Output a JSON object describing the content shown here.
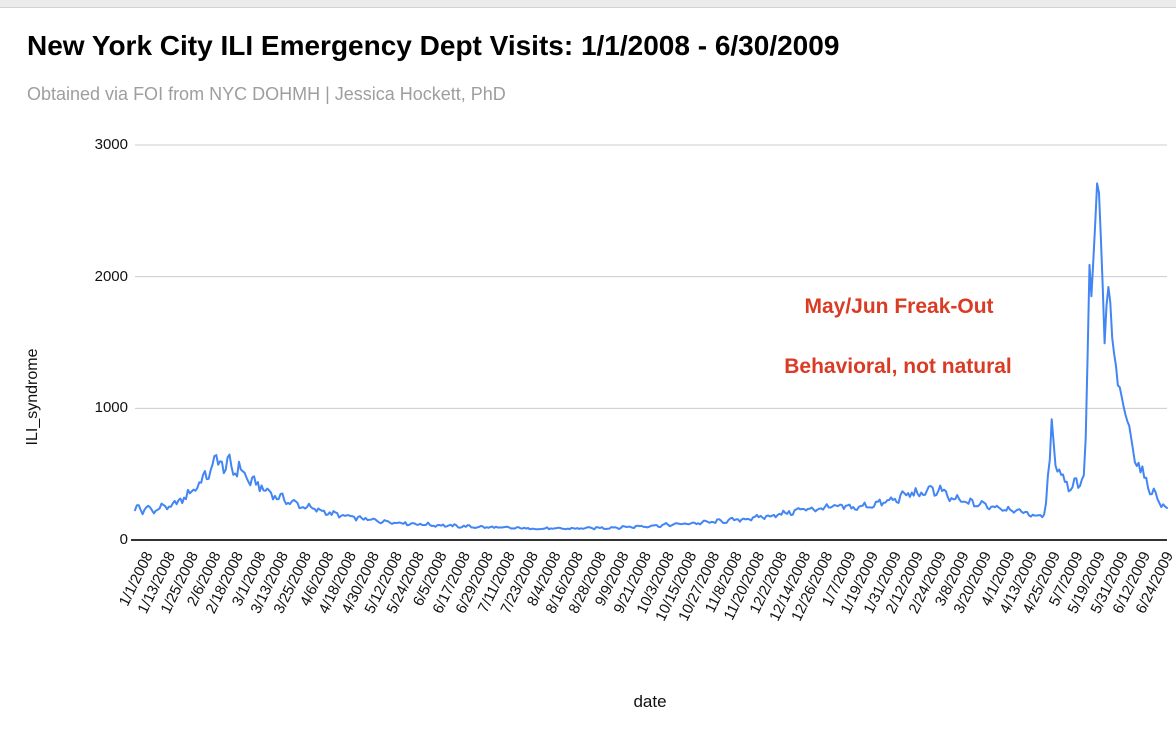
{
  "header": {
    "title": "New York City ILI Emergency Dept Visits: 1/1/2008 - 6/30/2009",
    "subtitle": "Obtained via FOI from NYC DOHMH | Jessica Hockett, PhD"
  },
  "colors": {
    "line": "#4285f4",
    "annotation_red": "#d93b25",
    "subtitle_gray": "#9e9e9e",
    "gridline": "#cccccc",
    "axis_line": "#333333"
  },
  "chart_data": {
    "type": "line",
    "title": "New York City ILI Emergency Dept Visits: 1/1/2008 - 6/30/2009",
    "xlabel": "date",
    "ylabel": "ILI_syndrome",
    "ylim": [
      0,
      3000
    ],
    "yticks": [
      0,
      1000,
      2000,
      3000
    ],
    "grid": "horizontal",
    "legend": "none",
    "x_range": [
      "1/1/2008",
      "6/30/2009"
    ],
    "x_tick_interval_days": 12,
    "x_tick_labels": [
      "1/1/2008",
      "1/13/2008",
      "1/25/2008",
      "2/6/2008",
      "2/18/2008",
      "3/1/2008",
      "3/13/2008",
      "3/25/2008",
      "4/6/2008",
      "4/18/2008",
      "4/30/2008",
      "5/12/2008",
      "5/24/2008",
      "6/5/2008",
      "6/17/2008",
      "6/29/2008",
      "7/11/2008",
      "7/23/2008",
      "8/4/2008",
      "8/16/2008",
      "8/28/2008",
      "9/9/2008",
      "9/21/2008",
      "10/3/2008",
      "10/15/2008",
      "10/27/2008",
      "11/8/2008",
      "11/20/2008",
      "12/2/2008",
      "12/14/2008",
      "12/26/2008",
      "1/7/2009",
      "1/19/2009",
      "1/31/2009",
      "2/12/2009",
      "2/24/2009",
      "3/8/2009",
      "3/20/2009",
      "4/1/2009",
      "4/13/2009",
      "4/25/2009",
      "5/7/2009",
      "5/19/2009",
      "5/31/2009",
      "6/12/2009",
      "6/24/2009"
    ],
    "series": [
      {
        "name": "ILI_syndrome",
        "color": "#4285f4",
        "sampling_note": "daily series; keypoints read from plot as [day_index_from_1/1/2008, visits], intermediate days interpolated with small day-to-day jitter",
        "keypoints_day_value": [
          [
            0,
            230
          ],
          [
            2,
            255
          ],
          [
            4,
            215
          ],
          [
            7,
            250
          ],
          [
            9,
            220
          ],
          [
            12,
            235
          ],
          [
            15,
            260
          ],
          [
            18,
            245
          ],
          [
            21,
            270
          ],
          [
            24,
            300
          ],
          [
            27,
            330
          ],
          [
            30,
            370
          ],
          [
            33,
            420
          ],
          [
            36,
            460
          ],
          [
            39,
            510
          ],
          [
            41,
            540
          ],
          [
            43,
            660
          ],
          [
            44,
            560
          ],
          [
            46,
            600
          ],
          [
            48,
            540
          ],
          [
            50,
            580
          ],
          [
            52,
            520
          ],
          [
            55,
            555
          ],
          [
            58,
            490
          ],
          [
            61,
            450
          ],
          [
            64,
            425
          ],
          [
            67,
            400
          ],
          [
            70,
            370
          ],
          [
            73,
            345
          ],
          [
            76,
            325
          ],
          [
            80,
            300
          ],
          [
            84,
            280
          ],
          [
            88,
            260
          ],
          [
            92,
            245
          ],
          [
            96,
            230
          ],
          [
            100,
            215
          ],
          [
            105,
            198
          ],
          [
            110,
            183
          ],
          [
            115,
            172
          ],
          [
            120,
            162
          ],
          [
            126,
            150
          ],
          [
            132,
            142
          ],
          [
            138,
            134
          ],
          [
            144,
            127
          ],
          [
            150,
            121
          ],
          [
            158,
            114
          ],
          [
            166,
            108
          ],
          [
            174,
            103
          ],
          [
            182,
            99
          ],
          [
            192,
            94
          ],
          [
            202,
            90
          ],
          [
            212,
            87
          ],
          [
            222,
            85
          ],
          [
            232,
            87
          ],
          [
            242,
            90
          ],
          [
            252,
            94
          ],
          [
            262,
            100
          ],
          [
            272,
            107
          ],
          [
            282,
            115
          ],
          [
            292,
            124
          ],
          [
            302,
            133
          ],
          [
            312,
            144
          ],
          [
            322,
            158
          ],
          [
            330,
            172
          ],
          [
            338,
            188
          ],
          [
            346,
            208
          ],
          [
            352,
            228
          ],
          [
            356,
            242
          ],
          [
            360,
            232
          ],
          [
            364,
            240
          ],
          [
            368,
            252
          ],
          [
            372,
            244
          ],
          [
            376,
            258
          ],
          [
            380,
            240
          ],
          [
            384,
            252
          ],
          [
            388,
            262
          ],
          [
            392,
            272
          ],
          [
            396,
            285
          ],
          [
            400,
            298
          ],
          [
            404,
            318
          ],
          [
            408,
            342
          ],
          [
            412,
            362
          ],
          [
            415,
            345
          ],
          [
            418,
            335
          ],
          [
            420,
            420
          ],
          [
            422,
            380
          ],
          [
            424,
            350
          ],
          [
            426,
            390
          ],
          [
            428,
            345
          ],
          [
            431,
            320
          ],
          [
            434,
            305
          ],
          [
            438,
            292
          ],
          [
            442,
            281
          ],
          [
            446,
            272
          ],
          [
            450,
            265
          ],
          [
            454,
            256
          ],
          [
            458,
            247
          ],
          [
            462,
            237
          ],
          [
            466,
            224
          ],
          [
            470,
            210
          ],
          [
            474,
            196
          ],
          [
            477,
            183
          ],
          [
            480,
            178
          ],
          [
            482,
            260
          ],
          [
            484,
            620
          ],
          [
            485,
            890
          ],
          [
            486,
            760
          ],
          [
            487,
            640
          ],
          [
            489,
            520
          ],
          [
            491,
            470
          ],
          [
            493,
            430
          ],
          [
            495,
            400
          ],
          [
            497,
            450
          ],
          [
            499,
            415
          ],
          [
            501,
            455
          ],
          [
            502,
            540
          ],
          [
            503,
            780
          ],
          [
            504,
            1350
          ],
          [
            505,
            2100
          ],
          [
            506,
            1820
          ],
          [
            507,
            2120
          ],
          [
            508,
            2430
          ],
          [
            509,
            2670
          ],
          [
            510,
            2580
          ],
          [
            511,
            2280
          ],
          [
            512,
            1880
          ],
          [
            513,
            1500
          ],
          [
            514,
            1760
          ],
          [
            515,
            1950
          ],
          [
            516,
            1780
          ],
          [
            517,
            1540
          ],
          [
            518,
            1380
          ],
          [
            520,
            1190
          ],
          [
            522,
            1080
          ],
          [
            524,
            960
          ],
          [
            526,
            840
          ],
          [
            528,
            710
          ],
          [
            530,
            610
          ],
          [
            532,
            530
          ],
          [
            534,
            470
          ],
          [
            536,
            420
          ],
          [
            538,
            372
          ],
          [
            540,
            335
          ],
          [
            542,
            300
          ],
          [
            544,
            268
          ],
          [
            546,
            235
          ]
        ]
      }
    ],
    "annotations": [
      {
        "text": "May/Jun Freak-Out",
        "color": "#d93b25"
      },
      {
        "text": "Behavioral, not natural",
        "color": "#d93b25"
      }
    ]
  }
}
